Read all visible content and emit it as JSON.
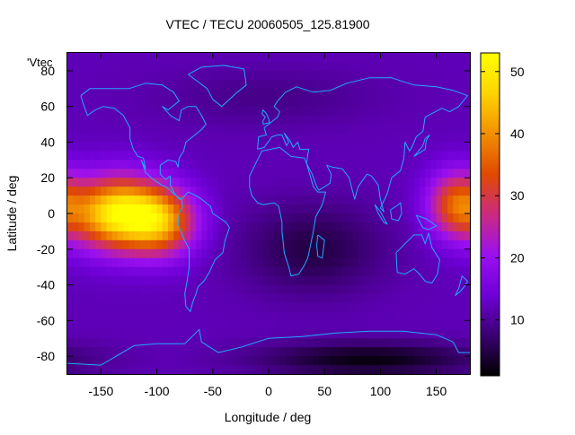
{
  "chart_data": {
    "type": "heatmap",
    "title": "VTEC / TECU 20060505_125.81900",
    "xlabel": "Longitude / deg",
    "ylabel": "Latitude / deg",
    "series_label": "'Vtec",
    "xlim": [
      -180,
      180
    ],
    "ylim": [
      -90,
      90
    ],
    "xticks": [
      -150,
      -100,
      -50,
      0,
      50,
      100,
      150
    ],
    "yticks": [
      -80,
      -60,
      -40,
      -20,
      0,
      20,
      40,
      60,
      80
    ],
    "colorbar": {
      "min": 1,
      "max": 53,
      "ticks": [
        10,
        20,
        30,
        40,
        50
      ]
    },
    "colormap": [
      "#000000",
      "#3a0070",
      "#6f00d8",
      "#9a10f0",
      "#cc2a80",
      "#e04a00",
      "#f29000",
      "#ffd400",
      "#ffff00"
    ],
    "grid_step_deg": 5,
    "vtec_model": {
      "background": 12,
      "blobs": [
        {
          "lon": -135,
          "lat": 0,
          "sigma_lon": 28,
          "sigma_lat": 14,
          "amp": 38
        },
        {
          "lon": -95,
          "lat": -5,
          "sigma_lon": 22,
          "sigma_lat": 13,
          "amp": 24
        },
        {
          "lon": 168,
          "lat": 5,
          "sigma_lon": 18,
          "sigma_lat": 13,
          "amp": 22
        },
        {
          "lon": 40,
          "lat": -20,
          "sigma_lon": 45,
          "sigma_lat": 18,
          "amp": -7
        },
        {
          "lon": 90,
          "lat": -82,
          "sigma_lon": 70,
          "sigma_lat": 7,
          "amp": -10
        },
        {
          "lon": 0,
          "lat": 65,
          "sigma_lon": 70,
          "sigma_lat": 12,
          "amp": -3
        }
      ]
    },
    "coastlines": [
      {
        "name": "north-america",
        "points": [
          [
            -168,
            66
          ],
          [
            -160,
            70
          ],
          [
            -140,
            70
          ],
          [
            -125,
            70
          ],
          [
            -110,
            73
          ],
          [
            -95,
            72
          ],
          [
            -85,
            68
          ],
          [
            -80,
            63
          ],
          [
            -90,
            58
          ],
          [
            -95,
            60
          ],
          [
            -88,
            55
          ],
          [
            -80,
            52
          ],
          [
            -78,
            58
          ],
          [
            -72,
            60
          ],
          [
            -65,
            60
          ],
          [
            -60,
            55
          ],
          [
            -56,
            50
          ],
          [
            -60,
            47
          ],
          [
            -66,
            44
          ],
          [
            -70,
            42
          ],
          [
            -74,
            40
          ],
          [
            -76,
            35
          ],
          [
            -80,
            31
          ],
          [
            -81,
            26
          ],
          [
            -83,
            29
          ],
          [
            -90,
            30
          ],
          [
            -97,
            27
          ],
          [
            -97,
            22
          ],
          [
            -92,
            19
          ],
          [
            -88,
            21
          ],
          [
            -88,
            16
          ],
          [
            -84,
            11
          ],
          [
            -80,
            8
          ],
          [
            -78,
            8
          ],
          [
            -85,
            11
          ],
          [
            -88,
            13
          ],
          [
            -92,
            15
          ],
          [
            -96,
            16
          ],
          [
            -105,
            20
          ],
          [
            -110,
            23
          ],
          [
            -114,
            30
          ],
          [
            -110,
            25
          ],
          [
            -112,
            31
          ],
          [
            -117,
            32
          ],
          [
            -121,
            36
          ],
          [
            -124,
            42
          ],
          [
            -124,
            48
          ],
          [
            -130,
            55
          ],
          [
            -138,
            59
          ],
          [
            -148,
            60
          ],
          [
            -155,
            58
          ],
          [
            -162,
            55
          ],
          [
            -165,
            60
          ],
          [
            -168,
            66
          ]
        ]
      },
      {
        "name": "south-america",
        "points": [
          [
            -78,
            8
          ],
          [
            -72,
            12
          ],
          [
            -65,
            10
          ],
          [
            -60,
            8
          ],
          [
            -52,
            4
          ],
          [
            -50,
            0
          ],
          [
            -45,
            -2
          ],
          [
            -38,
            -5
          ],
          [
            -35,
            -8
          ],
          [
            -39,
            -15
          ],
          [
            -41,
            -22
          ],
          [
            -48,
            -26
          ],
          [
            -53,
            -33
          ],
          [
            -58,
            -38
          ],
          [
            -63,
            -41
          ],
          [
            -65,
            -45
          ],
          [
            -68,
            -50
          ],
          [
            -70,
            -55
          ],
          [
            -74,
            -52
          ],
          [
            -75,
            -45
          ],
          [
            -73,
            -38
          ],
          [
            -71,
            -30
          ],
          [
            -71,
            -20
          ],
          [
            -76,
            -14
          ],
          [
            -81,
            -6
          ],
          [
            -80,
            0
          ],
          [
            -77,
            4
          ],
          [
            -78,
            8
          ]
        ]
      },
      {
        "name": "greenland",
        "points": [
          [
            -72,
            78
          ],
          [
            -60,
            82
          ],
          [
            -40,
            83
          ],
          [
            -22,
            81
          ],
          [
            -20,
            72
          ],
          [
            -28,
            68
          ],
          [
            -42,
            60
          ],
          [
            -50,
            64
          ],
          [
            -55,
            70
          ],
          [
            -72,
            78
          ]
        ]
      },
      {
        "name": "africa",
        "points": [
          [
            -17,
            21
          ],
          [
            -10,
            30
          ],
          [
            -6,
            35
          ],
          [
            10,
            37
          ],
          [
            20,
            32
          ],
          [
            32,
            31
          ],
          [
            34,
            28
          ],
          [
            40,
            15
          ],
          [
            44,
            12
          ],
          [
            51,
            12
          ],
          [
            48,
            5
          ],
          [
            42,
            -2
          ],
          [
            40,
            -10
          ],
          [
            35,
            -25
          ],
          [
            32,
            -29
          ],
          [
            27,
            -34
          ],
          [
            20,
            -35
          ],
          [
            18,
            -30
          ],
          [
            14,
            -22
          ],
          [
            12,
            -10
          ],
          [
            12,
            -5
          ],
          [
            9,
            4
          ],
          [
            5,
            6
          ],
          [
            -5,
            5
          ],
          [
            -10,
            6
          ],
          [
            -15,
            10
          ],
          [
            -17,
            15
          ],
          [
            -17,
            21
          ]
        ]
      },
      {
        "name": "eurasia",
        "points": [
          [
            -10,
            36
          ],
          [
            -9,
            43
          ],
          [
            -2,
            44
          ],
          [
            -4,
            48
          ],
          [
            2,
            51
          ],
          [
            8,
            54
          ],
          [
            10,
            57
          ],
          [
            5,
            60
          ],
          [
            8,
            63
          ],
          [
            15,
            68
          ],
          [
            25,
            71
          ],
          [
            40,
            68
          ],
          [
            55,
            69
          ],
          [
            70,
            73
          ],
          [
            90,
            76
          ],
          [
            110,
            76
          ],
          [
            130,
            72
          ],
          [
            150,
            71
          ],
          [
            165,
            69
          ],
          [
            178,
            66
          ],
          [
            170,
            60
          ],
          [
            162,
            57
          ],
          [
            155,
            59
          ],
          [
            140,
            54
          ],
          [
            138,
            46
          ],
          [
            132,
            43
          ],
          [
            128,
            37
          ],
          [
            126,
            35
          ],
          [
            122,
            40
          ],
          [
            121,
            31
          ],
          [
            118,
            24
          ],
          [
            110,
            20
          ],
          [
            106,
            11
          ],
          [
            100,
            3
          ],
          [
            103,
            1
          ],
          [
            100,
            8
          ],
          [
            98,
            16
          ],
          [
            92,
            21
          ],
          [
            88,
            22
          ],
          [
            80,
            15
          ],
          [
            77,
            8
          ],
          [
            72,
            20
          ],
          [
            66,
            25
          ],
          [
            57,
            26
          ],
          [
            52,
            27
          ],
          [
            56,
            22
          ],
          [
            55,
            17
          ],
          [
            45,
            13
          ],
          [
            43,
            15
          ],
          [
            39,
            22
          ],
          [
            34,
            28
          ],
          [
            35,
            33
          ],
          [
            36,
            36
          ],
          [
            28,
            36
          ],
          [
            26,
            40
          ],
          [
            22,
            37
          ],
          [
            19,
            41
          ],
          [
            14,
            45
          ],
          [
            18,
            40
          ],
          [
            16,
            38
          ],
          [
            12,
            44
          ],
          [
            8,
            44
          ],
          [
            3,
            43
          ],
          [
            -4,
            37
          ],
          [
            -10,
            36
          ]
        ]
      },
      {
        "name": "uk",
        "points": [
          [
            -5,
            50
          ],
          [
            1,
            51
          ],
          [
            0,
            53
          ],
          [
            -2,
            56
          ],
          [
            -5,
            58
          ],
          [
            -6,
            56
          ],
          [
            -3,
            54
          ],
          [
            -5,
            52
          ],
          [
            -5,
            50
          ]
        ]
      },
      {
        "name": "madagascar",
        "points": [
          [
            44,
            -12
          ],
          [
            50,
            -15
          ],
          [
            48,
            -25
          ],
          [
            44,
            -24
          ],
          [
            43,
            -18
          ],
          [
            44,
            -12
          ]
        ]
      },
      {
        "name": "australia",
        "points": [
          [
            114,
            -22
          ],
          [
            122,
            -17
          ],
          [
            130,
            -12
          ],
          [
            137,
            -12
          ],
          [
            140,
            -17
          ],
          [
            143,
            -11
          ],
          [
            146,
            -19
          ],
          [
            153,
            -26
          ],
          [
            151,
            -34
          ],
          [
            146,
            -39
          ],
          [
            140,
            -38
          ],
          [
            135,
            -34
          ],
          [
            130,
            -31
          ],
          [
            122,
            -34
          ],
          [
            115,
            -33
          ],
          [
            114,
            -22
          ]
        ]
      },
      {
        "name": "new-zealand",
        "points": [
          [
            173,
            -35
          ],
          [
            178,
            -38
          ],
          [
            175,
            -41
          ],
          [
            171,
            -44
          ],
          [
            167,
            -46
          ],
          [
            170,
            -42
          ],
          [
            173,
            -35
          ]
        ]
      },
      {
        "name": "japan",
        "points": [
          [
            130,
            32
          ],
          [
            135,
            34
          ],
          [
            140,
            36
          ],
          [
            141,
            41
          ],
          [
            144,
            44
          ],
          [
            140,
            42
          ],
          [
            138,
            38
          ],
          [
            134,
            35
          ],
          [
            130,
            32
          ]
        ]
      },
      {
        "name": "borneo",
        "points": [
          [
            109,
            2
          ],
          [
            114,
            4
          ],
          [
            118,
            6
          ],
          [
            119,
            0
          ],
          [
            116,
            -4
          ],
          [
            110,
            -3
          ],
          [
            109,
            2
          ]
        ]
      },
      {
        "name": "sumatra",
        "points": [
          [
            95,
            5
          ],
          [
            100,
            1
          ],
          [
            106,
            -6
          ],
          [
            103,
            -5
          ],
          [
            98,
            0
          ],
          [
            95,
            5
          ]
        ]
      },
      {
        "name": "new-guinea",
        "points": [
          [
            132,
            -1
          ],
          [
            141,
            -3
          ],
          [
            150,
            -7
          ],
          [
            143,
            -9
          ],
          [
            138,
            -8
          ],
          [
            132,
            -1
          ]
        ]
      },
      {
        "name": "antarctica",
        "points": [
          [
            -180,
            -84
          ],
          [
            -150,
            -85
          ],
          [
            -120,
            -74
          ],
          [
            -100,
            -73
          ],
          [
            -75,
            -73
          ],
          [
            -62,
            -65
          ],
          [
            -60,
            -72
          ],
          [
            -45,
            -78
          ],
          [
            -25,
            -75
          ],
          [
            0,
            -70
          ],
          [
            30,
            -69
          ],
          [
            60,
            -67
          ],
          [
            90,
            -66
          ],
          [
            120,
            -66
          ],
          [
            150,
            -68
          ],
          [
            165,
            -72
          ],
          [
            170,
            -78
          ],
          [
            180,
            -78
          ]
        ]
      }
    ]
  }
}
